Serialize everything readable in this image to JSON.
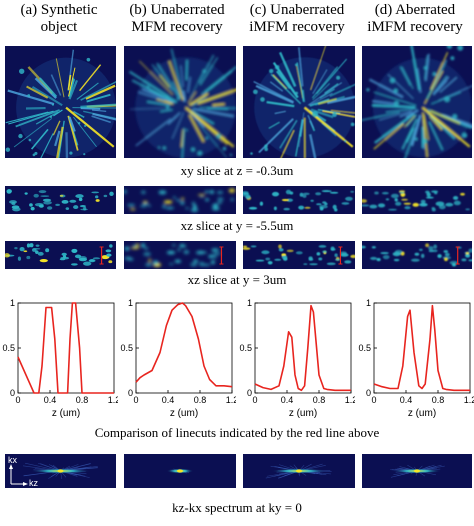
{
  "columns": [
    {
      "title": "(a) Synthetic\nobject"
    },
    {
      "title": "(b) Unaberrated\nMFM recovery"
    },
    {
      "title": "(c) Unaberrated\niMFM recovery"
    },
    {
      "title": "(d) Aberrated\niMFM recovery"
    }
  ],
  "captions": {
    "xy": "xy slice at z = -0.3um",
    "xz1": "xz slice at y = -5.5um",
    "xz2": "xz slice at y = 3um",
    "linecuts": "Comparison of linecuts indicated by the red line above",
    "spectrum": "kz-kx spectrum at ky = 0"
  },
  "spectrum_axes": {
    "kx": "kx",
    "kz": "kz"
  },
  "colors": {
    "background": "#0b0f52",
    "bright": "#f6e626",
    "mid": "#2fb8c8",
    "line": "#e8251f"
  },
  "chart_data": [
    {
      "type": "line",
      "title": "",
      "xlabel": "z (um)",
      "ylabel": "",
      "xlim": [
        0,
        1.2
      ],
      "ylim": [
        0,
        1
      ],
      "xticks": [
        "0",
        "0.4",
        "0.8",
        "1.2"
      ],
      "yticks": [
        "0",
        "0.5",
        "1"
      ],
      "series": [
        {
          "x": [
            0,
            0.2,
            0.26,
            0.3,
            0.35,
            0.42,
            0.46,
            0.5,
            0.56,
            0.62,
            0.65,
            0.68,
            0.72,
            0.77,
            0.8,
            0.9,
            1.0,
            1.2
          ],
          "y": [
            0.4,
            0.0,
            0.0,
            0.3,
            0.95,
            0.95,
            0.6,
            0.0,
            0.0,
            0.0,
            0.6,
            1.0,
            1.0,
            0.5,
            0.0,
            0.0,
            0.0,
            0.0
          ]
        }
      ]
    },
    {
      "type": "line",
      "title": "",
      "xlabel": "z (um)",
      "ylabel": "",
      "xlim": [
        0,
        1.2
      ],
      "ylim": [
        0,
        1
      ],
      "xticks": [
        "0",
        "0.4",
        "0.8",
        "1.2"
      ],
      "yticks": [
        "0",
        "0.5",
        "1"
      ],
      "series": [
        {
          "x": [
            0,
            0.05,
            0.1,
            0.2,
            0.3,
            0.38,
            0.45,
            0.52,
            0.58,
            0.62,
            0.7,
            0.78,
            0.85,
            0.92,
            1.0,
            1.1,
            1.2
          ],
          "y": [
            0.12,
            0.17,
            0.2,
            0.25,
            0.45,
            0.75,
            0.92,
            0.98,
            1.0,
            0.97,
            0.85,
            0.6,
            0.3,
            0.15,
            0.08,
            0.08,
            0.07
          ]
        }
      ]
    },
    {
      "type": "line",
      "title": "",
      "xlabel": "z (um)",
      "ylabel": "",
      "xlim": [
        0,
        1.2
      ],
      "ylim": [
        0,
        1
      ],
      "xticks": [
        "0",
        "0.4",
        "0.8",
        "1.2"
      ],
      "yticks": [
        "0",
        "0.5",
        "1"
      ],
      "series": [
        {
          "x": [
            0,
            0.1,
            0.2,
            0.3,
            0.36,
            0.42,
            0.46,
            0.5,
            0.54,
            0.58,
            0.62,
            0.66,
            0.7,
            0.73,
            0.76,
            0.8,
            0.86,
            0.9,
            1.0,
            1.1,
            1.2
          ],
          "y": [
            0.1,
            0.06,
            0.04,
            0.08,
            0.3,
            0.68,
            0.62,
            0.2,
            0.05,
            0.03,
            0.08,
            0.5,
            0.97,
            0.9,
            0.6,
            0.2,
            0.05,
            0.04,
            0.03,
            0.03,
            0.03
          ]
        }
      ]
    },
    {
      "type": "line",
      "title": "",
      "xlabel": "z (um)",
      "ylabel": "",
      "xlim": [
        0,
        1.2
      ],
      "ylim": [
        0,
        1
      ],
      "xticks": [
        "0",
        "0.4",
        "0.8",
        "1.2"
      ],
      "yticks": [
        "0",
        "0.5",
        "1"
      ],
      "series": [
        {
          "x": [
            0,
            0.1,
            0.2,
            0.3,
            0.36,
            0.42,
            0.45,
            0.5,
            0.56,
            0.6,
            0.64,
            0.7,
            0.73,
            0.76,
            0.8,
            0.86,
            0.9,
            1.0,
            1.1,
            1.2
          ],
          "y": [
            0.1,
            0.07,
            0.05,
            0.05,
            0.3,
            0.85,
            0.92,
            0.45,
            0.08,
            0.05,
            0.1,
            0.6,
            0.97,
            0.7,
            0.25,
            0.05,
            0.04,
            0.03,
            0.03,
            0.03
          ]
        }
      ]
    }
  ]
}
